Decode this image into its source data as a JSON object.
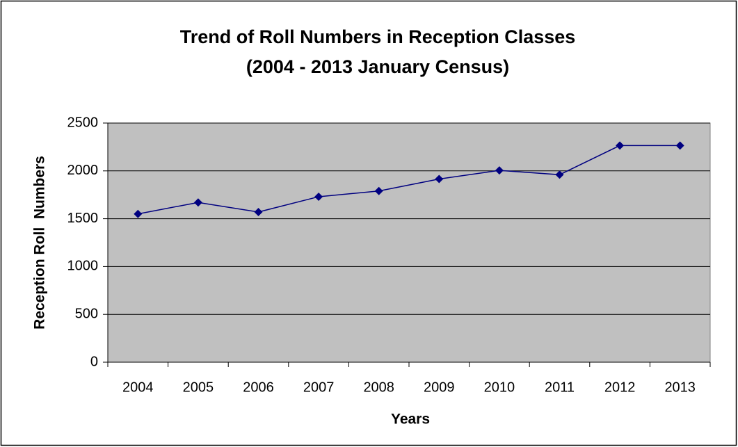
{
  "chart_data": {
    "type": "line",
    "title": [
      "Trend of Roll Numbers in Reception Classes",
      "(2004 - 2013 January Census)"
    ],
    "x_label": "Years",
    "y_label": "Reception Roll  Numbers",
    "categories": [
      "2004",
      "2005",
      "2006",
      "2007",
      "2008",
      "2009",
      "2010",
      "2011",
      "2012",
      "2013"
    ],
    "series": [
      {
        "name": "Reception Roll Numbers",
        "color": "#000080",
        "values": [
          1550,
          1670,
          1570,
          1730,
          1790,
          1915,
          2005,
          1960,
          2265,
          2265
        ]
      }
    ],
    "ylim": [
      0,
      2500
    ],
    "yticks": [
      0,
      500,
      1000,
      1500,
      2000,
      2500
    ],
    "grid": true,
    "plot_color": "#c0c0c0"
  }
}
